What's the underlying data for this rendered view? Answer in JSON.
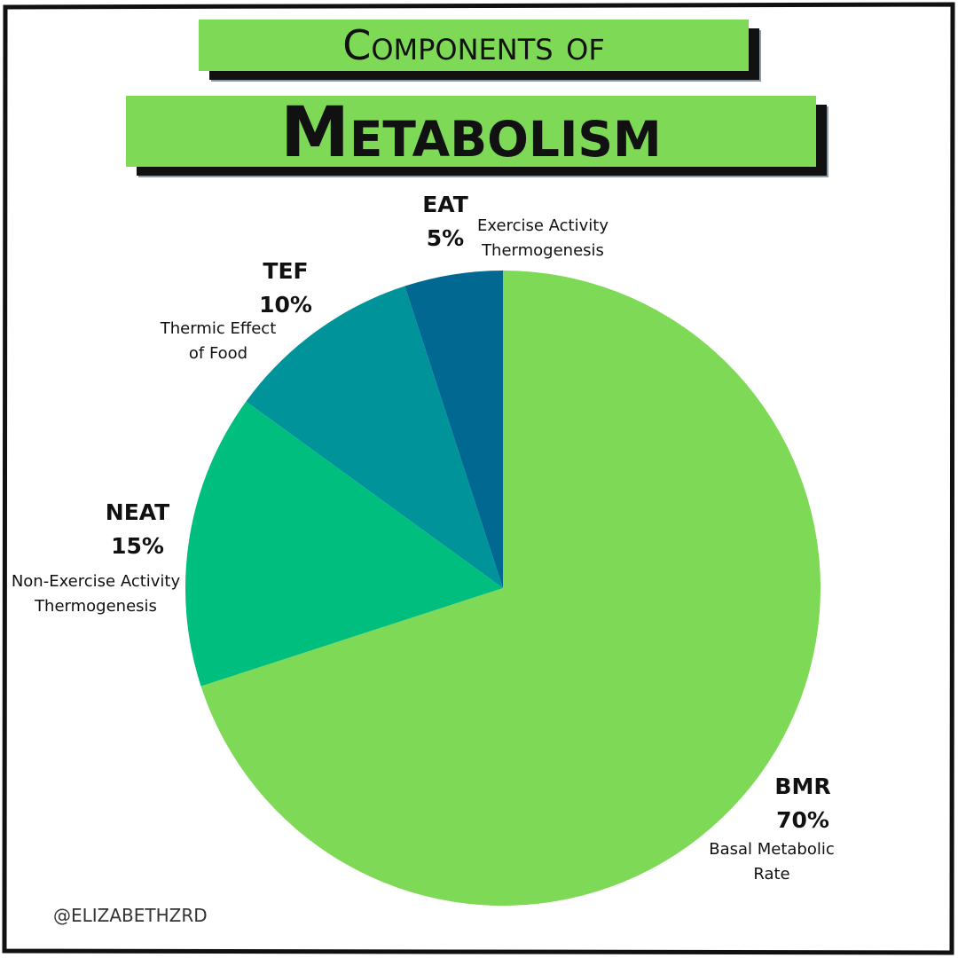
{
  "chart_data": {
    "type": "pie",
    "title": "Components of",
    "subtitle": "Metabolism",
    "categories": [
      "BMR",
      "NEAT",
      "TEF",
      "EAT"
    ],
    "values": [
      70,
      15,
      10,
      5
    ],
    "value_labels": [
      "70%",
      "15%",
      "10%",
      "5%"
    ],
    "descriptions": [
      "Basal Metabolic Rate",
      "Non-Exercise Activity Thermogenesis",
      "Thermic Effect of Food",
      "Exercise Activity Thermogenesis"
    ],
    "colors": [
      "#7ed957",
      "#00bf7e",
      "#00939a",
      "#006891"
    ],
    "credit": "@ELIZABETHZRD"
  }
}
